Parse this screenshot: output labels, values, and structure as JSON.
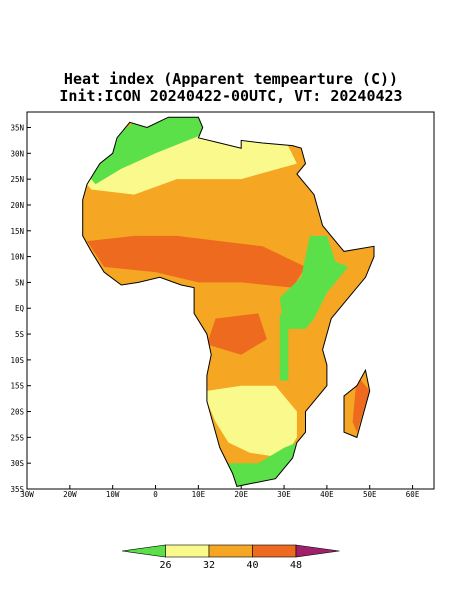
{
  "title": "Heat index (Apparent tempearture (C))",
  "subtitle": "Init:ICON 20240422-00UTC, VT: 20240423",
  "map": {
    "xlim": [
      -30,
      65
    ],
    "ylim": [
      -35,
      38
    ],
    "xticks": [
      {
        "value": -30,
        "label": "30W"
      },
      {
        "value": -20,
        "label": "20W"
      },
      {
        "value": -10,
        "label": "10W"
      },
      0,
      {
        "value": 10,
        "label": "10E"
      },
      {
        "value": 20,
        "label": "20E"
      },
      {
        "value": 30,
        "label": "30E"
      },
      {
        "value": 40,
        "label": "40E"
      },
      {
        "value": 50,
        "label": "50E"
      },
      {
        "value": 60,
        "label": "60E"
      }
    ],
    "yticks": [
      {
        "value": 35,
        "label": "35N"
      },
      {
        "value": 30,
        "label": "30N"
      },
      {
        "value": 25,
        "label": "25N"
      },
      {
        "value": 20,
        "label": "20N"
      },
      {
        "value": 15,
        "label": "15N"
      },
      {
        "value": 10,
        "label": "10N"
      },
      {
        "value": 5,
        "label": "5N"
      },
      {
        "value": 0,
        "label": "EQ"
      },
      {
        "value": -5,
        "label": "5S"
      },
      {
        "value": -10,
        "label": "10S"
      },
      {
        "value": -15,
        "label": "15S"
      },
      {
        "value": -20,
        "label": "20S"
      },
      {
        "value": -25,
        "label": "25S"
      },
      {
        "value": -30,
        "label": "30S"
      },
      {
        "value": -35,
        "label": "35S"
      }
    ]
  },
  "colorbar": {
    "levels": [
      26,
      32,
      40,
      48
    ],
    "colors": [
      "#5ce04a",
      "#fafa8c",
      "#f5a623",
      "#ee6a1e",
      "#a0206a"
    ]
  }
}
